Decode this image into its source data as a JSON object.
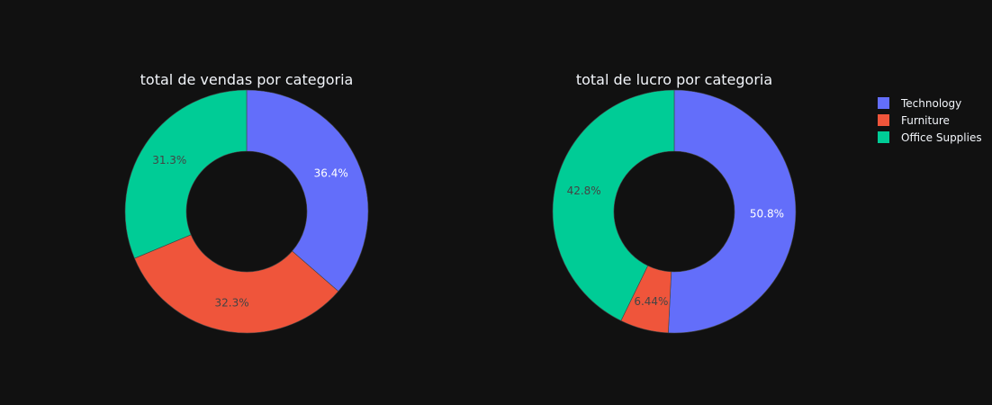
{
  "chart_data": [
    {
      "type": "pie",
      "hole": true,
      "title": "total de vendas por categoria",
      "categories": [
        "Technology",
        "Furniture",
        "Office Supplies"
      ],
      "values": [
        36.4,
        32.3,
        31.3
      ],
      "labels": [
        "36.4%",
        "32.3%",
        "31.3%"
      ]
    },
    {
      "type": "pie",
      "hole": true,
      "title": "total de lucro por categoria",
      "categories": [
        "Technology",
        "Furniture",
        "Office Supplies"
      ],
      "values": [
        50.8,
        6.44,
        42.8
      ],
      "labels": [
        "50.8%",
        "6.44%",
        "42.8%"
      ]
    }
  ],
  "legend": {
    "placement": "top-right",
    "items": [
      "Technology",
      "Furniture",
      "Office Supplies"
    ]
  },
  "colors": {
    "background": "#111111",
    "Technology": "#636efa",
    "Furniture": "#ef553b",
    "Office Supplies": "#00cc96",
    "text": "#f2f5fa",
    "label_dark": "#444444",
    "label_light": "#ffffff"
  }
}
